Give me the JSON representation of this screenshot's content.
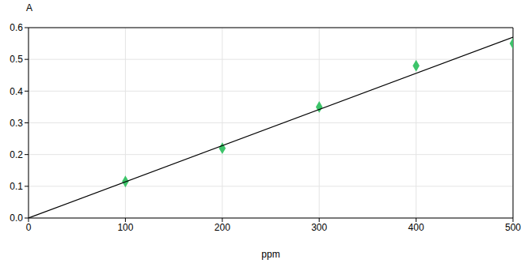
{
  "chart_data": {
    "type": "scatter",
    "x_label": "ppm",
    "y_label": "A",
    "xlim": [
      0,
      500
    ],
    "xticks": [
      0,
      100,
      200,
      300,
      400,
      500
    ],
    "ylim": [
      0,
      0.6
    ],
    "yticks": [
      {
        "value": 0,
        "label": "0.0"
      },
      0.1,
      0.2,
      0.3,
      0.4,
      0.5,
      0.6
    ],
    "grid": true,
    "series": [
      {
        "type": "scatter",
        "color": "#3dc46a",
        "marker": "diamond",
        "x": [
          100,
          200,
          300,
          400,
          500
        ],
        "values": [
          0.115,
          0.22,
          0.35,
          0.48,
          0.55
        ]
      },
      {
        "type": "line",
        "color": "#000000",
        "line_style": "solid",
        "x": [
          0,
          500
        ],
        "values": [
          0,
          0.57
        ]
      }
    ]
  }
}
